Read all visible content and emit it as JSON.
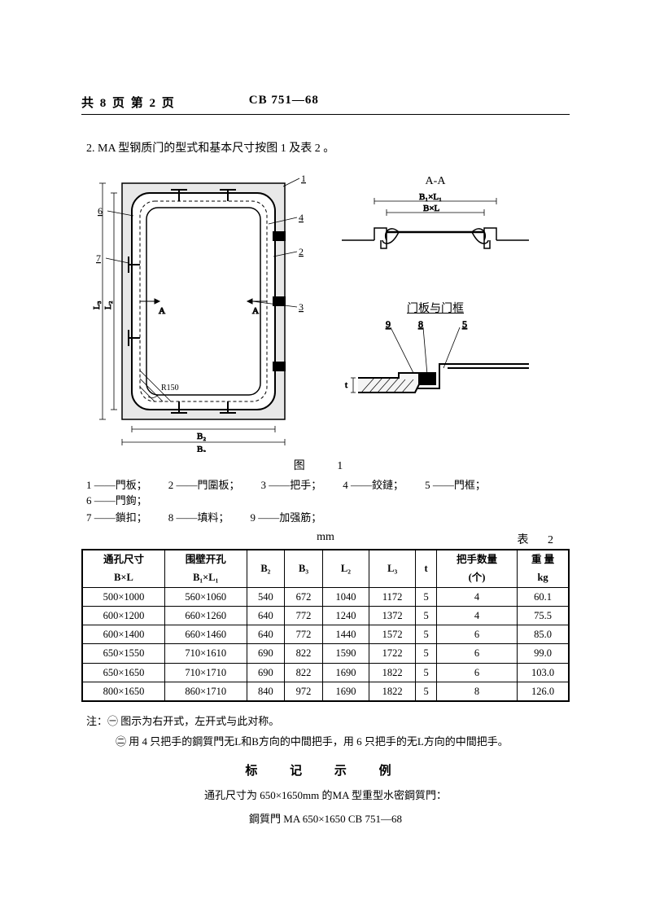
{
  "header": {
    "left": "共 8 页  第 2 页",
    "doc": "CB 751—68"
  },
  "section_title": "2. MA 型钢质门的型式和基本尺寸按图 1 及表 2 。",
  "figure": {
    "caption": "图    1",
    "callouts": [
      "1",
      "2",
      "3",
      "4",
      "5",
      "6",
      "7",
      "8",
      "9"
    ],
    "dims_main": [
      "L₃",
      "L₂",
      "B₂",
      "B₃",
      "R150",
      "A",
      "A"
    ],
    "section_aa_label": "A-A",
    "section_aa_dims": [
      "B₁×L₁",
      "B×L"
    ],
    "detail_label": "门板与门框",
    "detail_callouts": [
      "9",
      "8",
      "5"
    ],
    "detail_dim": "t"
  },
  "legend": {
    "row1": [
      {
        "n": "1",
        "t": "門板；"
      },
      {
        "n": "2",
        "t": "門圍板；"
      },
      {
        "n": "3",
        "t": "把手；"
      },
      {
        "n": "4",
        "t": "鉸鏈；"
      },
      {
        "n": "5",
        "t": "門框；"
      },
      {
        "n": "6",
        "t": "門鉤；"
      }
    ],
    "row2": [
      {
        "n": "7",
        "t": "鎖扣；"
      },
      {
        "n": "8",
        "t": "填料；"
      },
      {
        "n": "9",
        "t": "加强筋；"
      }
    ]
  },
  "table": {
    "unit": "mm",
    "label": "表  2",
    "columns": [
      {
        "h1": "通孔尺寸",
        "h2": "B×L"
      },
      {
        "h1": "围壁开孔",
        "h2": "B₁×L₁"
      },
      {
        "h1": "B₂",
        "h2": ""
      },
      {
        "h1": "B₃",
        "h2": ""
      },
      {
        "h1": "L₂",
        "h2": ""
      },
      {
        "h1": "L₃",
        "h2": ""
      },
      {
        "h1": "t",
        "h2": ""
      },
      {
        "h1": "把手数量",
        "h2": "(个)"
      },
      {
        "h1": "重  量",
        "h2": "kg"
      }
    ],
    "rows": [
      [
        "500×1000",
        "560×1060",
        "540",
        "672",
        "1040",
        "1172",
        "5",
        "4",
        "60.1"
      ],
      [
        "600×1200",
        "660×1260",
        "640",
        "772",
        "1240",
        "1372",
        "5",
        "4",
        "75.5"
      ],
      [
        "600×1400",
        "660×1460",
        "640",
        "772",
        "1440",
        "1572",
        "5",
        "6",
        "85.0"
      ],
      [
        "650×1550",
        "710×1610",
        "690",
        "822",
        "1590",
        "1722",
        "5",
        "6",
        "99.0"
      ],
      [
        "650×1650",
        "710×1710",
        "690",
        "822",
        "1690",
        "1822",
        "5",
        "6",
        "103.0"
      ],
      [
        "800×1650",
        "860×1710",
        "840",
        "972",
        "1690",
        "1822",
        "5",
        "8",
        "126.0"
      ]
    ]
  },
  "notes": {
    "n1": "注：㊀ 图示为右开式，左开式与此对称。",
    "n2": "㊁ 用 4 只把手的鋼質門无L和B方向的中間把手，用 6 只把手的无L方向的中間把手。"
  },
  "example": {
    "title": "标  记  示  例",
    "text": "通孔尺寸为 650×1650mm 的MA 型重型水密鋼質門：",
    "code": "鋼質門 MA 650×1650 CB 751—68"
  }
}
